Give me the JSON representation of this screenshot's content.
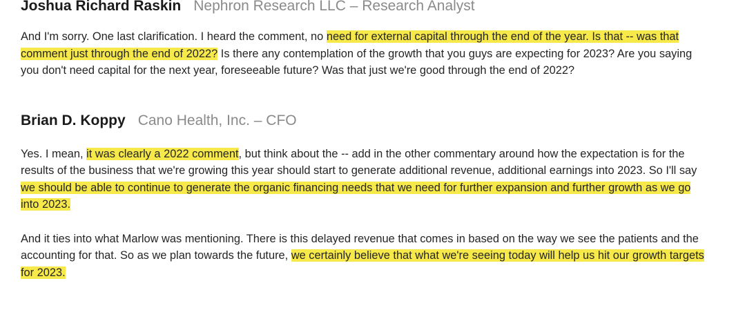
{
  "blocks": [
    {
      "speaker_name": "Joshua Richard Raskin",
      "speaker_role": "Nephron Research LLC – Research Analyst",
      "paragraphs": [
        [
          {
            "text": "And I'm sorry. One last clarification. I heard the comment, no ",
            "highlight": false
          },
          {
            "text": "need for external capital through the end of the year. Is that -- was that comment just through the end of 2022?",
            "highlight": true
          },
          {
            "text": " Is there any contemplation of the growth that you guys are expecting for 2023? Are you saying you don't need capital for the next year, foreseeable future? Was that just we're good through the end of 2022?",
            "highlight": false
          }
        ]
      ]
    },
    {
      "speaker_name": "Brian D. Koppy",
      "speaker_role": "Cano Health, Inc. – CFO",
      "paragraphs": [
        [
          {
            "text": "Yes. I mean, ",
            "highlight": false
          },
          {
            "text": "it was clearly a 2022 comment",
            "highlight": true
          },
          {
            "text": ", but think about the -- add in the other commentary around how the expectation is for the results of the business that we're growing this year should start to generate additional revenue, additional earnings into 2023. So I'll say ",
            "highlight": false
          },
          {
            "text": "we should be able to continue to generate the organic financing needs that we need for further expansion and further growth as we go into 2023.",
            "highlight": true
          }
        ],
        [
          {
            "text": "And it ties into what Marlow was mentioning. There is this delayed revenue that comes in based on the way we see the patients and the accounting for that. So as we plan towards the future, ",
            "highlight": false
          },
          {
            "text": "we certainly believe that what we're seeing today will help us hit our growth targets for 2023.",
            "highlight": true
          }
        ]
      ]
    }
  ],
  "colors": {
    "highlight": "#f7e94a",
    "speaker_role": "#8a8a8a",
    "text": "#252525"
  }
}
